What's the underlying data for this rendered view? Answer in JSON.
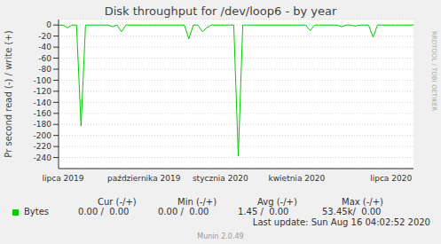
{
  "chart_data": {
    "type": "line",
    "title": "Disk throughput for /dev/loop6 - by year",
    "y_label": "Pr second read (-) / write (+)",
    "categories": [
      null,
      "lipca 2019",
      null,
      null,
      null,
      null,
      null,
      null,
      null,
      null,
      null,
      null,
      null,
      null,
      null,
      null,
      null,
      null,
      null,
      "października 2019",
      null,
      null,
      null,
      null,
      null,
      null,
      null,
      null,
      null,
      null,
      null,
      null,
      null,
      null,
      null,
      null,
      "stycznia 2020",
      null,
      null,
      null,
      null,
      null,
      null,
      null,
      null,
      null,
      null,
      null,
      null,
      null,
      null,
      null,
      null,
      "kwietnia 2020",
      null,
      null,
      null,
      null,
      null,
      null,
      null,
      null,
      null,
      null,
      null,
      null,
      null,
      null,
      null,
      null,
      null,
      null,
      null,
      null,
      "lipca 2020",
      null,
      null,
      null,
      null,
      null
    ],
    "series": [
      {
        "name": "Bytes",
        "color": "#00cc00",
        "values": [
          0,
          0,
          -5,
          0,
          0,
          -183,
          0,
          0,
          0,
          0,
          0,
          0,
          -3,
          0,
          -12,
          0,
          0,
          0,
          0,
          0,
          0,
          0,
          0,
          0,
          0,
          0,
          0,
          0,
          0,
          -25,
          0,
          0,
          -12,
          -5,
          0,
          0,
          0,
          0,
          0,
          0,
          -237,
          0,
          0,
          0,
          0,
          0,
          0,
          0,
          0,
          0,
          0,
          0,
          0,
          0,
          0,
          0,
          -10,
          0,
          0,
          0,
          0,
          0,
          0,
          -3,
          0,
          0,
          -2,
          0,
          0,
          0,
          -22,
          0,
          0,
          0,
          0,
          0,
          0,
          0,
          0,
          0
        ]
      }
    ],
    "ylim": [
      -260,
      10
    ],
    "yticks": [
      -240,
      -220,
      -200,
      -180,
      -160,
      -140,
      -120,
      -100,
      -80,
      -60,
      -40,
      -20,
      0
    ],
    "grid": true,
    "legend_table": {
      "headers": [
        "Cur (-/+)",
        "Min (-/+)",
        "Avg (-/+)",
        "Max (-/+)"
      ],
      "rows": [
        {
          "name": "Bytes",
          "color": "#00cc00",
          "cells": [
            "0.00 /  0.00",
            "0.00 /  0.00",
            "1.45 /  0.00",
            "53.45k/  0.00"
          ]
        }
      ]
    },
    "last_update": "Last update: Sun Aug 16 04:02:52 2020",
    "footer": "Munin 2.0.49",
    "watermark": "RRDTOOL / TOBI OETIKER"
  }
}
